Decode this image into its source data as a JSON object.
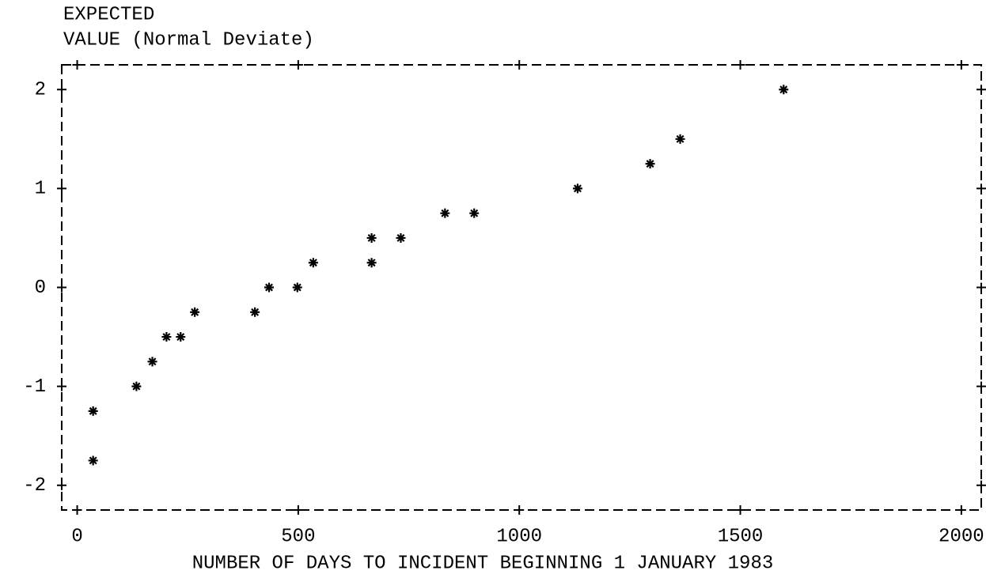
{
  "chart_data": {
    "type": "scatter",
    "y_label": [
      "EXPECTED",
      "VALUE (Normal Deviate)"
    ],
    "x_label": "NUMBER OF DAYS TO INCIDENT BEGINNING 1 JANUARY 1983",
    "x": [
      36,
      36,
      134,
      170,
      202,
      234,
      266,
      402,
      434,
      498,
      534,
      666,
      666,
      732,
      832,
      898,
      1132,
      1296,
      1364,
      1598
    ],
    "values": [
      -1.25,
      -1.75,
      -1.0,
      -0.75,
      -0.5,
      -0.5,
      -0.25,
      -0.25,
      0,
      0,
      0.25,
      0.25,
      0.5,
      0.5,
      0.75,
      0.75,
      1.0,
      1.25,
      1.5,
      2.0
    ],
    "color": "#000000",
    "xlim": [
      -35,
      2045
    ],
    "xticks": [
      0,
      500,
      1000,
      1500,
      2000
    ],
    "ylim": [
      -2.25,
      2.25
    ],
    "yticks": [
      -2,
      -1,
      0,
      1,
      2
    ]
  }
}
